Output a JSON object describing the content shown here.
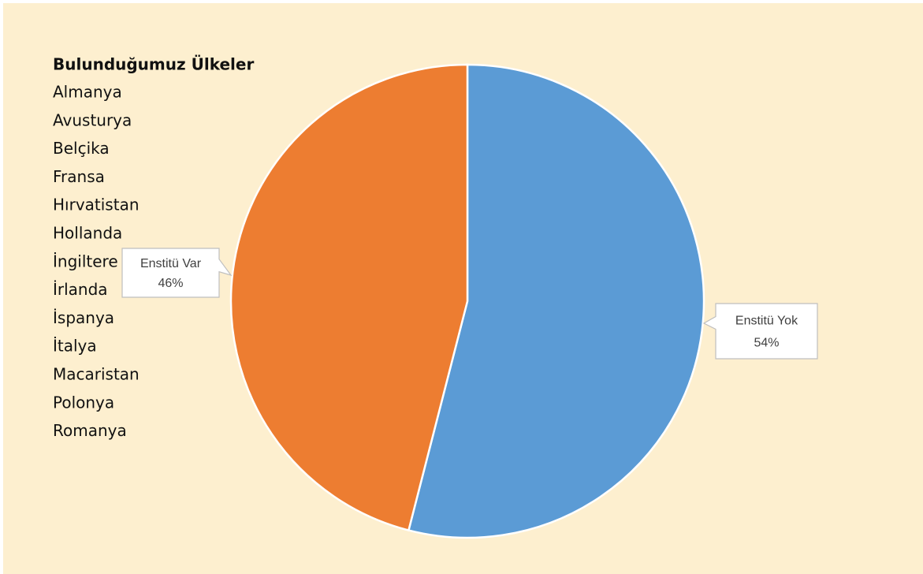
{
  "chart_data": {
    "type": "pie",
    "categories": [
      "Enstitü Yok",
      "Enstitü Var"
    ],
    "values": [
      54,
      46
    ],
    "value_labels": [
      "54%",
      "46%"
    ],
    "colors": [
      "#5b9bd5",
      "#ed7d31"
    ],
    "text_box": {
      "title": "Bulunduğumuz Ülkeler",
      "items": [
        "Almanya",
        "Avusturya",
        "Belçika",
        "Fransa",
        "Hırvatistan",
        "Hollanda",
        "İngiltere",
        "İrlanda",
        "İspanya",
        "İtalya",
        "Macaristan",
        "Polonya",
        "Romanya"
      ]
    }
  }
}
